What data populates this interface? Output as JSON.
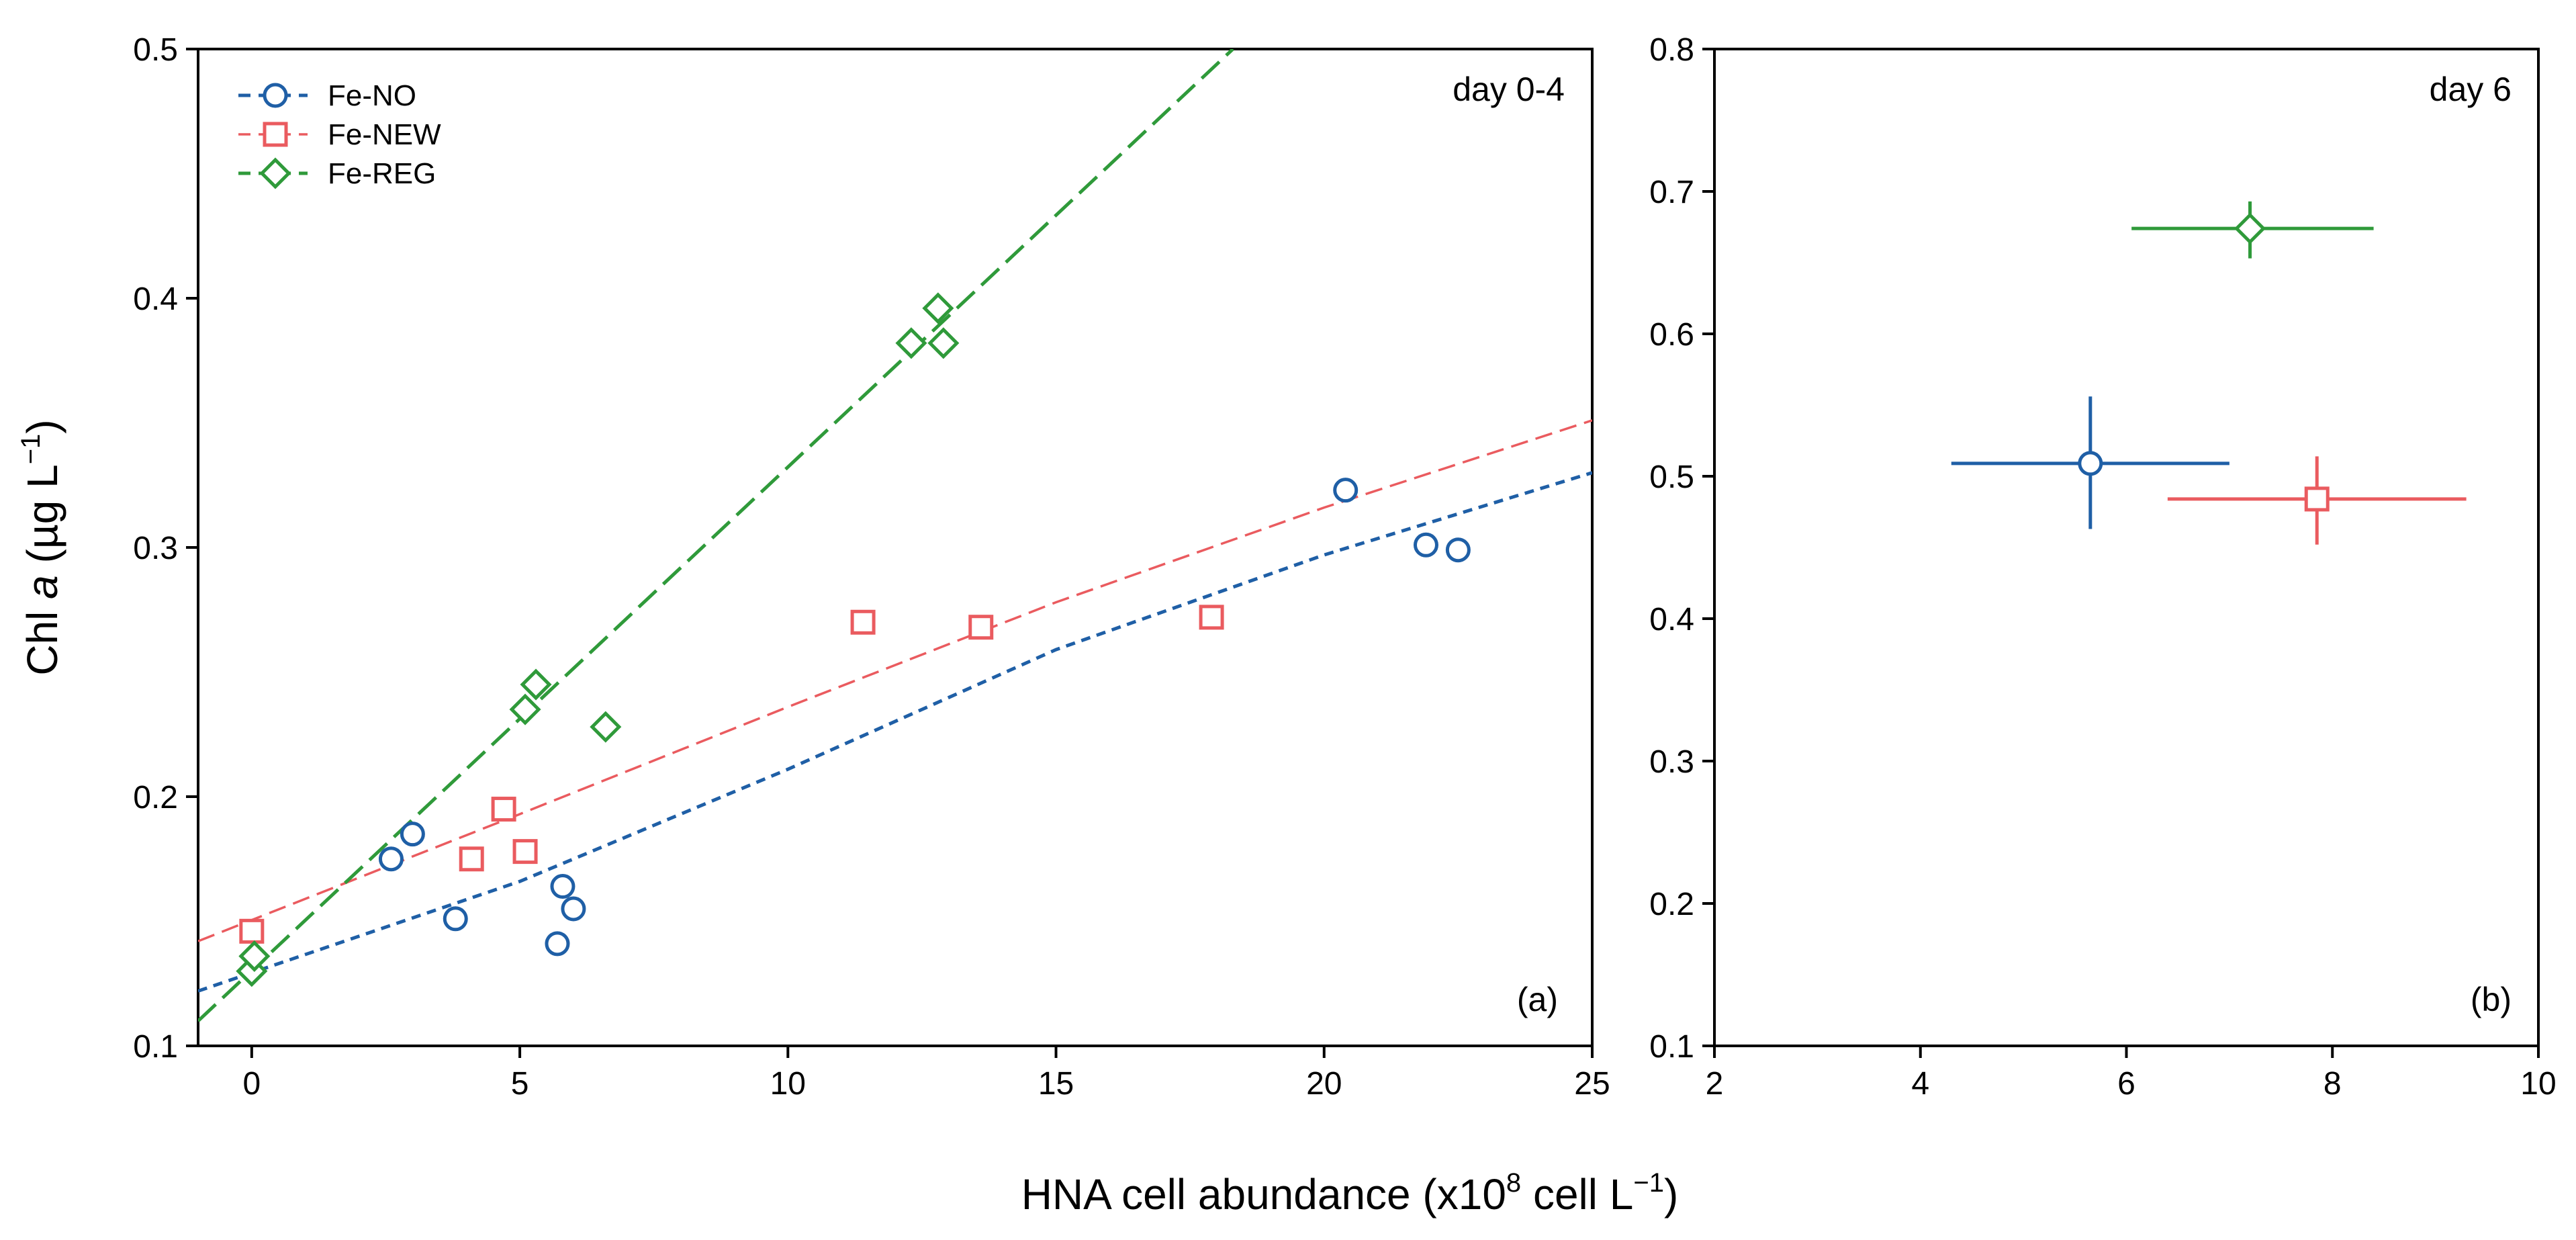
{
  "colors": {
    "fe_no": "#1f5fa6",
    "fe_new": "#ea5b5f",
    "fe_reg": "#2f9a3a"
  },
  "chart_data": [
    {
      "id": "a",
      "type": "scatter",
      "panel_tag": "(a)",
      "title": "day 0-4",
      "xlabel_main": "HNA cell abundance (x10",
      "xlabel_exp": "8",
      "xlabel_tail": " cell L",
      "xlabel_tail_exp": "−1",
      "xlabel_close": ")",
      "ylabel_pre": "Chl ",
      "ylabel_ital": "a",
      "ylabel_unit": " (µg L",
      "ylabel_exp": "−1",
      "ylabel_close": ")",
      "xlim": [
        -1,
        25
      ],
      "ylim": [
        0.1,
        0.5
      ],
      "xticks": [
        0,
        5,
        10,
        15,
        20,
        25
      ],
      "xtick_labels": [
        "0",
        "5",
        "10",
        "15",
        "20",
        "25"
      ],
      "yticks": [
        0.1,
        0.2,
        0.3,
        0.4,
        0.5
      ],
      "ytick_labels": [
        "0.1",
        "0.2",
        "0.3",
        "0.4",
        "0.5"
      ],
      "legend_position": "top-left",
      "series": [
        {
          "name": "Fe-NO",
          "marker": "circle",
          "color_key": "fe_no",
          "points": [
            [
              2.6,
              0.175
            ],
            [
              3.0,
              0.185
            ],
            [
              3.8,
              0.151
            ],
            [
              5.7,
              0.141
            ],
            [
              5.8,
              0.164
            ],
            [
              6.0,
              0.155
            ],
            [
              20.4,
              0.323
            ],
            [
              21.9,
              0.301
            ],
            [
              22.5,
              0.299
            ]
          ],
          "fit": {
            "style": "short-dash",
            "points": [
              [
                -1,
                0.122
              ],
              [
                5,
                0.166
              ],
              [
                10,
                0.211
              ],
              [
                15,
                0.259
              ],
              [
                20,
                0.297
              ],
              [
                25,
                0.33
              ]
            ]
          }
        },
        {
          "name": "Fe-NEW",
          "marker": "square",
          "color_key": "fe_new",
          "points": [
            [
              0.0,
              0.146
            ],
            [
              4.1,
              0.175
            ],
            [
              4.7,
              0.195
            ],
            [
              5.1,
              0.178
            ],
            [
              11.4,
              0.27
            ],
            [
              13.6,
              0.268
            ],
            [
              17.9,
              0.272
            ]
          ],
          "fit": {
            "style": "long-dash-thin",
            "points": [
              [
                -1,
                0.142
              ],
              [
                5,
                0.193
              ],
              [
                10,
                0.236
              ],
              [
                15,
                0.278
              ],
              [
                20,
                0.316
              ],
              [
                25,
                0.351
              ]
            ]
          }
        },
        {
          "name": "Fe-REG",
          "marker": "diamond",
          "color_key": "fe_reg",
          "points": [
            [
              0.0,
              0.13
            ],
            [
              0.05,
              0.136
            ],
            [
              5.1,
              0.235
            ],
            [
              5.3,
              0.245
            ],
            [
              6.6,
              0.228
            ],
            [
              12.3,
              0.382
            ],
            [
              12.8,
              0.396
            ],
            [
              12.9,
              0.382
            ]
          ],
          "fit": {
            "style": "long-dash",
            "points": [
              [
                -1,
                0.11
              ],
              [
                18.3,
                0.5
              ]
            ]
          }
        }
      ]
    },
    {
      "id": "b",
      "type": "scatter",
      "panel_tag": "(b)",
      "title": "day 6",
      "xlim": [
        2,
        10
      ],
      "ylim": [
        0.1,
        0.8
      ],
      "xticks": [
        2,
        4,
        6,
        8,
        10
      ],
      "xtick_labels": [
        "2",
        "4",
        "6",
        "8",
        "10"
      ],
      "yticks": [
        0.1,
        0.2,
        0.3,
        0.4,
        0.5,
        0.6,
        0.7,
        0.8
      ],
      "ytick_labels": [
        "0.1",
        "0.2",
        "0.3",
        "0.4",
        "0.5",
        "0.6",
        "0.7",
        "0.8"
      ],
      "series": [
        {
          "name": "Fe-NO",
          "marker": "circle",
          "color_key": "fe_no",
          "x": 5.65,
          "y": 0.509,
          "xerr": [
            4.3,
            7.0
          ],
          "yerr": [
            0.463,
            0.556
          ]
        },
        {
          "name": "Fe-NEW",
          "marker": "square",
          "color_key": "fe_new",
          "x": 7.85,
          "y": 0.484,
          "xerr": [
            6.4,
            9.3
          ],
          "yerr": [
            0.452,
            0.514
          ]
        },
        {
          "name": "Fe-REG",
          "marker": "diamond",
          "color_key": "fe_reg",
          "x": 7.2,
          "y": 0.674,
          "xerr": [
            6.05,
            8.4
          ],
          "yerr": [
            0.653,
            0.693
          ]
        }
      ]
    }
  ]
}
